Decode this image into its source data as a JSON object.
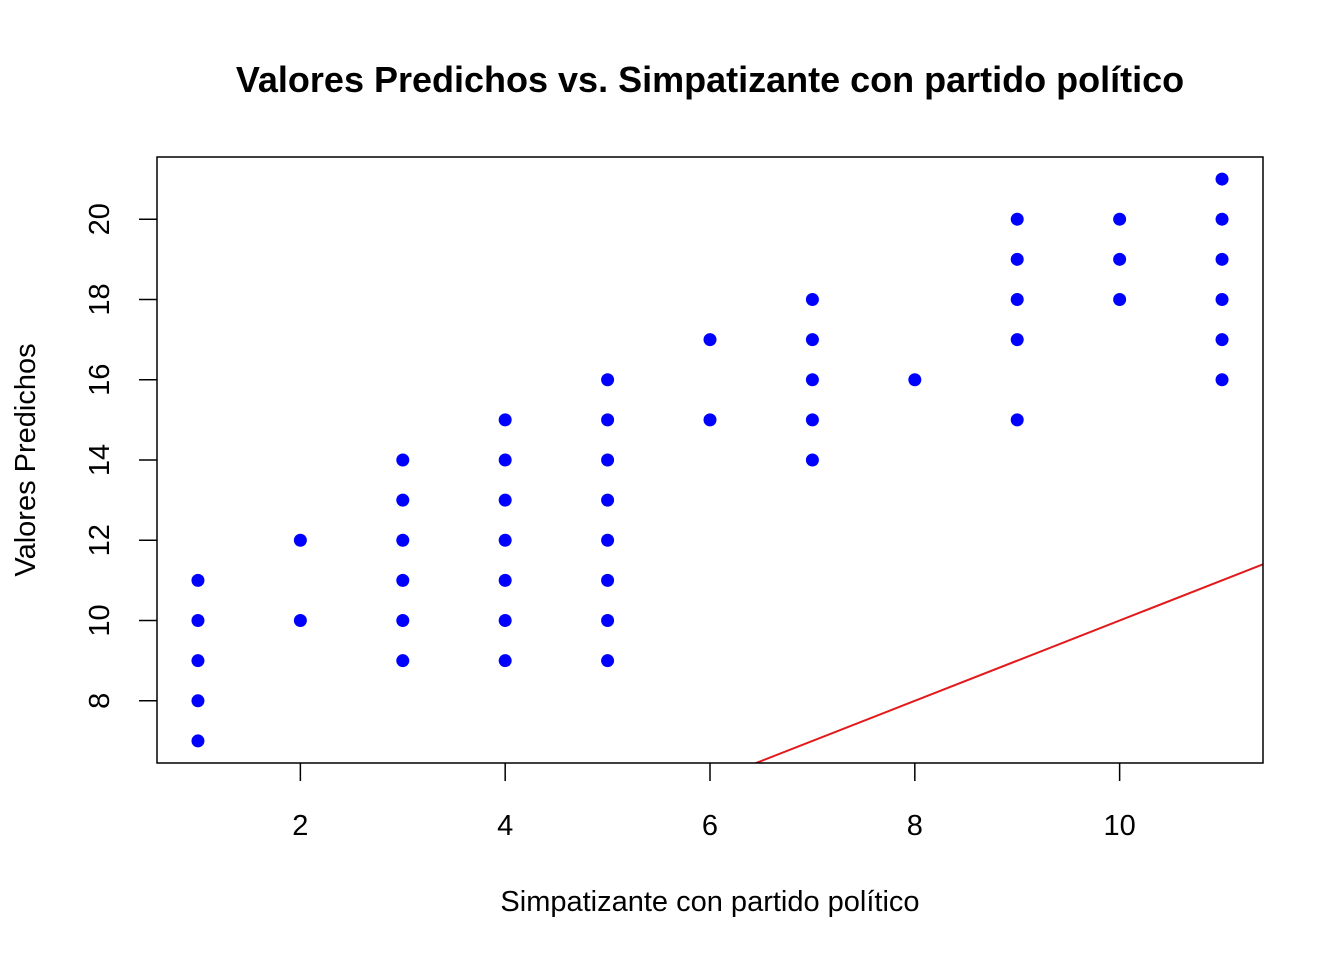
{
  "chart_data": {
    "type": "scatter",
    "title": "Valores Predichos vs. Simpatizante con partido político",
    "xlabel": "Simpatizante con partido político",
    "ylabel": "Valores Predichos",
    "xlim": [
      0.6,
      11.4
    ],
    "ylim": [
      6.45,
      21.55
    ],
    "xticks": [
      "2",
      "4",
      "6",
      "8",
      "10"
    ],
    "yticks": [
      "8",
      "10",
      "12",
      "14",
      "16",
      "18",
      "20"
    ],
    "point_color": "#0000ff",
    "line_color": "#e31a1c",
    "points": [
      {
        "x": 1,
        "y": 7
      },
      {
        "x": 1,
        "y": 8
      },
      {
        "x": 1,
        "y": 9
      },
      {
        "x": 1,
        "y": 10
      },
      {
        "x": 1,
        "y": 11
      },
      {
        "x": 2,
        "y": 10
      },
      {
        "x": 2,
        "y": 12
      },
      {
        "x": 3,
        "y": 9
      },
      {
        "x": 3,
        "y": 10
      },
      {
        "x": 3,
        "y": 11
      },
      {
        "x": 3,
        "y": 12
      },
      {
        "x": 3,
        "y": 13
      },
      {
        "x": 3,
        "y": 14
      },
      {
        "x": 4,
        "y": 9
      },
      {
        "x": 4,
        "y": 10
      },
      {
        "x": 4,
        "y": 11
      },
      {
        "x": 4,
        "y": 12
      },
      {
        "x": 4,
        "y": 13
      },
      {
        "x": 4,
        "y": 14
      },
      {
        "x": 4,
        "y": 15
      },
      {
        "x": 5,
        "y": 9
      },
      {
        "x": 5,
        "y": 10
      },
      {
        "x": 5,
        "y": 11
      },
      {
        "x": 5,
        "y": 12
      },
      {
        "x": 5,
        "y": 13
      },
      {
        "x": 5,
        "y": 14
      },
      {
        "x": 5,
        "y": 15
      },
      {
        "x": 5,
        "y": 16
      },
      {
        "x": 6,
        "y": 15
      },
      {
        "x": 6,
        "y": 17
      },
      {
        "x": 7,
        "y": 14
      },
      {
        "x": 7,
        "y": 15
      },
      {
        "x": 7,
        "y": 16
      },
      {
        "x": 7,
        "y": 17
      },
      {
        "x": 7,
        "y": 18
      },
      {
        "x": 8,
        "y": 16
      },
      {
        "x": 9,
        "y": 15
      },
      {
        "x": 9,
        "y": 17
      },
      {
        "x": 9,
        "y": 18
      },
      {
        "x": 9,
        "y": 19
      },
      {
        "x": 9,
        "y": 20
      },
      {
        "x": 10,
        "y": 18
      },
      {
        "x": 10,
        "y": 19
      },
      {
        "x": 10,
        "y": 20
      },
      {
        "x": 11,
        "y": 16
      },
      {
        "x": 11,
        "y": 17
      },
      {
        "x": 11,
        "y": 18
      },
      {
        "x": 11,
        "y": 19
      },
      {
        "x": 11,
        "y": 20
      },
      {
        "x": 11,
        "y": 21
      }
    ],
    "reference_line": {
      "intercept": 0,
      "slope": 1
    }
  }
}
